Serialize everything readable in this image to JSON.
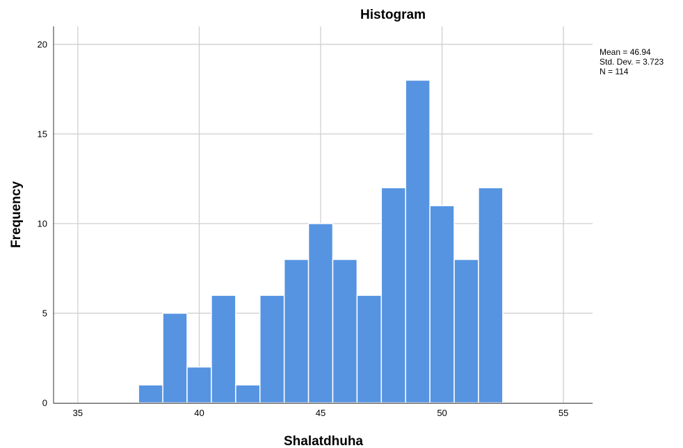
{
  "chart_data": {
    "type": "bar",
    "title": "Histogram",
    "xlabel": "Shalatdhuha",
    "ylabel": "Frequency",
    "xlim": [
      34,
      56.2
    ],
    "ylim": [
      0,
      21
    ],
    "x_ticks": [
      35,
      40,
      45,
      50,
      55
    ],
    "y_ticks": [
      0,
      5,
      10,
      15,
      20
    ],
    "grid": true,
    "bar_color": "#5694e2",
    "bin_width": 1,
    "bins": [
      {
        "start": 37.5,
        "end": 38.5,
        "count": 1
      },
      {
        "start": 38.5,
        "end": 39.5,
        "count": 5
      },
      {
        "start": 39.5,
        "end": 40.5,
        "count": 2
      },
      {
        "start": 40.5,
        "end": 41.5,
        "count": 6
      },
      {
        "start": 41.5,
        "end": 42.5,
        "count": 1
      },
      {
        "start": 42.5,
        "end": 43.5,
        "count": 6
      },
      {
        "start": 43.5,
        "end": 44.5,
        "count": 8
      },
      {
        "start": 44.5,
        "end": 45.5,
        "count": 10
      },
      {
        "start": 45.5,
        "end": 46.5,
        "count": 8
      },
      {
        "start": 46.5,
        "end": 47.5,
        "count": 6
      },
      {
        "start": 47.5,
        "end": 48.5,
        "count": 12
      },
      {
        "start": 48.5,
        "end": 49.5,
        "count": 18
      },
      {
        "start": 49.5,
        "end": 50.5,
        "count": 11
      },
      {
        "start": 50.5,
        "end": 51.5,
        "count": 8
      },
      {
        "start": 51.5,
        "end": 52.5,
        "count": 12
      }
    ],
    "stats": {
      "mean_label": "Mean = 46.94",
      "std_label": "Std. Dev. = 3.723",
      "n_label": "N = 114"
    }
  }
}
